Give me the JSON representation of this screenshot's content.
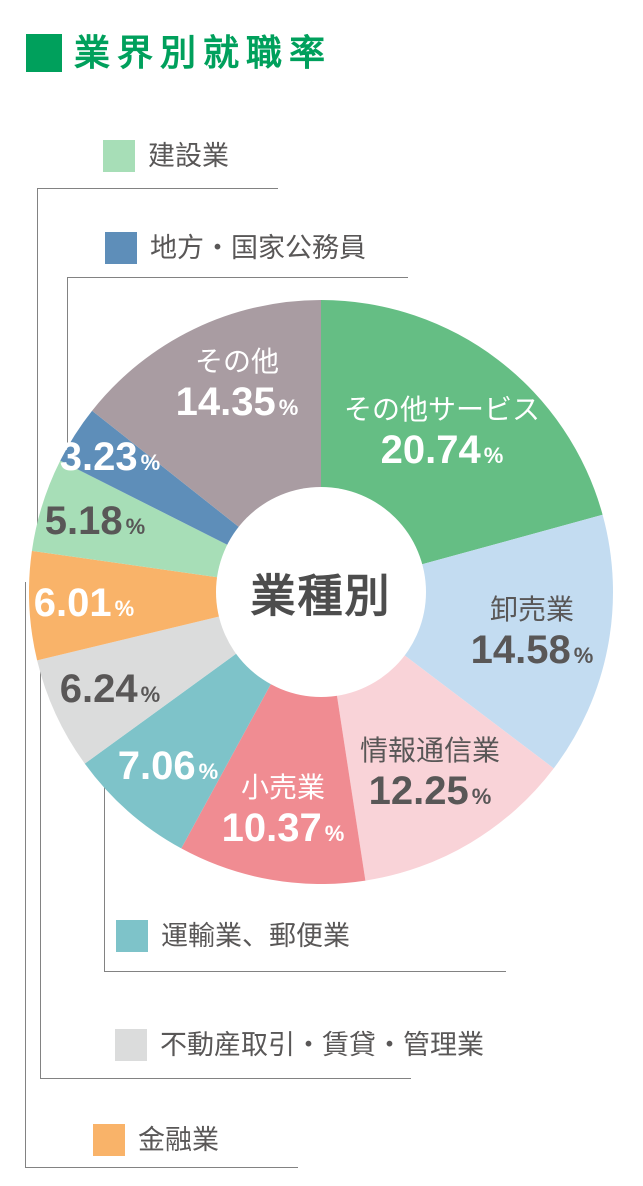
{
  "page": {
    "title": "業界別就職率",
    "title_color": "#00a05c",
    "background": "#ffffff"
  },
  "chart_data": {
    "type": "pie",
    "title": "業界別就職率",
    "center_label": "業種別",
    "donut": true,
    "start_angle_deg": 0,
    "direction": "clockwise",
    "value_suffix": "%",
    "slices": [
      {
        "label": "その他サービス",
        "value": 20.74,
        "color": "#65be84",
        "text_color": "#ffffff",
        "name_inside": true,
        "label_r": 200
      },
      {
        "label": "卸売業",
        "value": 14.58,
        "color": "#c3dcf1",
        "text_color": "#595757",
        "name_inside": true,
        "label_r": 215
      },
      {
        "label": "情報通信業",
        "value": 12.25,
        "color": "#f9d3d8",
        "text_color": "#595757",
        "name_inside": true,
        "label_r": 212
      },
      {
        "label": "小売業",
        "value": 10.37,
        "color": "#f08c92",
        "text_color": "#ffffff",
        "name_inside": true,
        "label_r": 222
      },
      {
        "label": "運輸業、郵便業",
        "value": 7.06,
        "color": "#7ec3c9",
        "text_color": "#ffffff",
        "name_inside": false,
        "label_r": 232
      },
      {
        "label": "不動産取引・賃貸・管理業",
        "value": 6.24,
        "color": "#dbdcdc",
        "text_color": "#595757",
        "name_inside": false,
        "label_r": 232
      },
      {
        "label": "金融業",
        "value": 6.01,
        "color": "#f9b369",
        "text_color": "#ffffff",
        "name_inside": false,
        "label_r": 237
      },
      {
        "label": "建設業",
        "value": 5.18,
        "color": "#a7deb7",
        "text_color": "#595757",
        "name_inside": false,
        "label_r": 237
      },
      {
        "label": "地方・国家公務員",
        "value": 3.23,
        "color": "#5e8eb9",
        "text_color": "#ffffff",
        "name_inside": false,
        "label_r": 250
      },
      {
        "label": "その他",
        "value": 14.35,
        "color": "#a99ca2",
        "text_color": "#ffffff",
        "name_inside": true,
        "label_r": 230,
        "label_dx": 16
      }
    ],
    "legend_position": "outside-brackets",
    "legend_order": [
      7,
      8,
      4,
      5,
      6
    ]
  }
}
